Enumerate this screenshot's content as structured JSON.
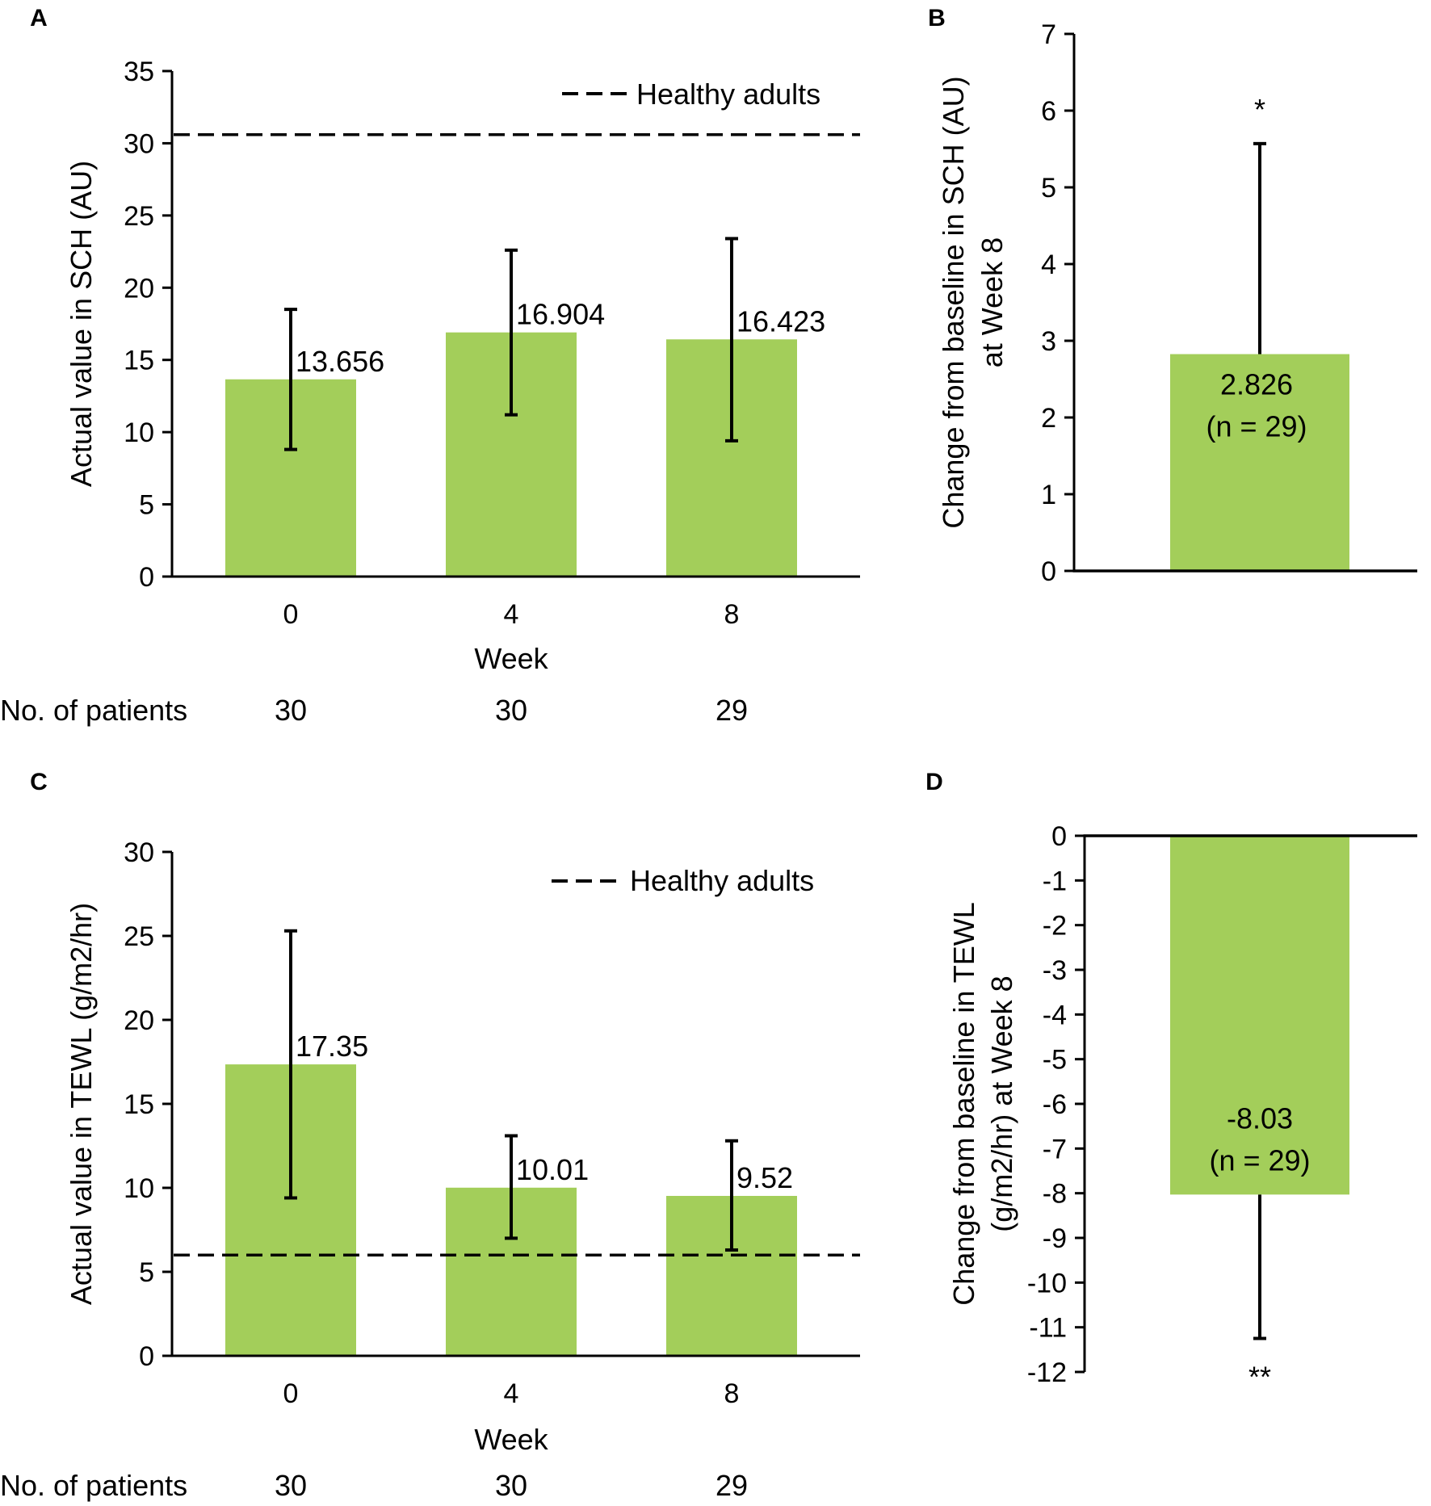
{
  "colors": {
    "bar": "#a3ce5a",
    "axis": "#000000",
    "errorbar": "#000000",
    "reference": "#000000"
  },
  "chart_data": [
    {
      "panel": "A",
      "type": "bar",
      "categories": [
        "0",
        "4",
        "8"
      ],
      "values": [
        13.656,
        16.904,
        16.423
      ],
      "value_labels": [
        "13.656",
        "16.904",
        "16.423"
      ],
      "error_bars": [
        {
          "low": 8.8,
          "high": 18.5
        },
        {
          "low": 11.2,
          "high": 22.6
        },
        {
          "low": 9.4,
          "high": 23.4
        }
      ],
      "reference_line": {
        "label": "Healthy adults",
        "value": 30.6
      },
      "xlabel": "Week",
      "ylabel": "Actual value in SCH (AU)",
      "ylim": [
        0,
        35
      ],
      "yticks": [
        0,
        5,
        10,
        15,
        20,
        25,
        30,
        35
      ],
      "patients": {
        "label": "No. of patients",
        "values": [
          "30",
          "30",
          "29"
        ]
      },
      "grid": false
    },
    {
      "panel": "B",
      "type": "bar",
      "categories": [
        ""
      ],
      "values": [
        2.826
      ],
      "value_labels": [
        "2.826"
      ],
      "n_label": "(n = 29)",
      "error_bars": [
        {
          "low": 2.826,
          "high": 5.57
        }
      ],
      "significance": "*",
      "ylabel_lines": [
        "Change from baseline in SCH (AU)",
        "at Week 8"
      ],
      "ylim": [
        0,
        7
      ],
      "yticks": [
        0,
        1,
        2,
        3,
        4,
        5,
        6,
        7
      ],
      "grid": false
    },
    {
      "panel": "C",
      "type": "bar",
      "categories": [
        "0",
        "4",
        "8"
      ],
      "values": [
        17.35,
        10.01,
        9.52
      ],
      "value_labels": [
        "17.35",
        "10.01",
        "9.52"
      ],
      "error_bars": [
        {
          "low": 9.4,
          "high": 25.3
        },
        {
          "low": 7.0,
          "high": 13.1
        },
        {
          "low": 6.3,
          "high": 12.8
        }
      ],
      "reference_line": {
        "label": "Healthy adults",
        "value": 6.0
      },
      "xlabel": "Week",
      "ylabel": "Actual value in TEWL (g/m2/hr)",
      "ylim": [
        0,
        30
      ],
      "yticks": [
        0,
        5,
        10,
        15,
        20,
        25,
        30
      ],
      "patients": {
        "label": "No. of patients",
        "values": [
          "30",
          "30",
          "29"
        ]
      },
      "grid": false
    },
    {
      "panel": "D",
      "type": "bar",
      "categories": [
        ""
      ],
      "values": [
        -8.03
      ],
      "value_labels": [
        "-8.03"
      ],
      "n_label": "(n = 29)",
      "error_bars": [
        {
          "low": -11.25,
          "high": -8.03
        }
      ],
      "significance": "**",
      "ylabel_lines": [
        "Change from baseline in TEWL",
        "(g/m2/hr) at Week 8"
      ],
      "ylim": [
        -12,
        0
      ],
      "yticks": [
        0,
        -1,
        -2,
        -3,
        -4,
        -5,
        -6,
        -7,
        -8,
        -9,
        -10,
        -11,
        -12
      ],
      "grid": false
    }
  ]
}
